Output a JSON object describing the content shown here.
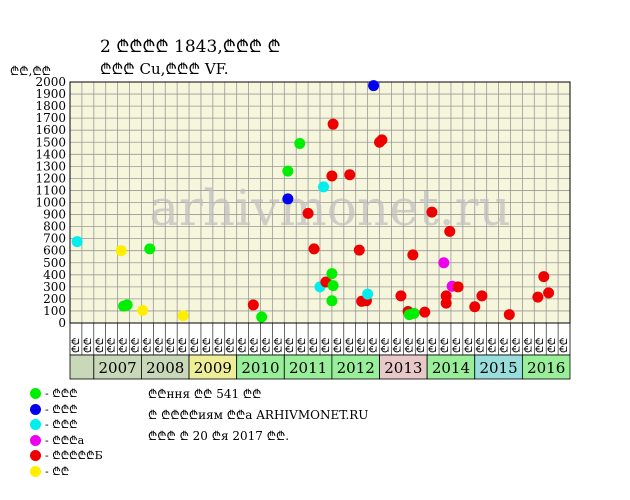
{
  "header": {
    "title": "2 ₾₾₾₾ 1843,₾₾₾ ₾",
    "subtitle": "₾₾₾ Cu,₾₾₾ VF."
  },
  "footer": {
    "line1": "₾₾ння ₾₾ 541 ₾₾",
    "line2": "₾ ₾₾₾₾иям ₾₾а ARHIVMONET.RU",
    "line3": "₾₾₾ ₾ 20 ₾я 2017 ₾₾."
  },
  "watermark": "arhivmonet.ru",
  "legend": [
    {
      "label": "- ₾₾₾",
      "color": "#00ee00"
    },
    {
      "label": "- ₾₾₾",
      "color": "#0000ee"
    },
    {
      "label": "- ₾₾₾",
      "color": "#00eeee"
    },
    {
      "label": "- ₾₾₾а",
      "color": "#ee00ee"
    },
    {
      "label": "- ₾₾₾₾₾Б",
      "color": "#ee0000"
    },
    {
      "label": "- ₾₾",
      "color": "#ffee00"
    }
  ],
  "chart_data": {
    "type": "scatter",
    "ylabel": "₾₾,₾₾",
    "ylim": [
      0,
      2000
    ],
    "yticks": [
      0,
      100,
      200,
      300,
      400,
      500,
      600,
      700,
      800,
      900,
      1000,
      1100,
      1200,
      1300,
      1400,
      1500,
      1600,
      1700,
      1800,
      1900,
      2000
    ],
    "grid": true,
    "quarter_labels": [
      "₾₾",
      "₾₾",
      "₾₾",
      "₾₾",
      "₾₾",
      "₾₾",
      "₾₾",
      "₾₾",
      "₾₾",
      "₾₾",
      "₾₾",
      "₾₾",
      "₾₾",
      "₾₾",
      "₾₾",
      "₾₾",
      "₾₾",
      "₾₾",
      "₾₾",
      "₾₾",
      "₾₾",
      "₾₾",
      "₾₾",
      "₾₾",
      "₾₾",
      "₾₾",
      "₾₾",
      "₾₾",
      "₾₾",
      "₾₾",
      "₾₾",
      "₾₾",
      "₾₾",
      "₾₾",
      "₾₾",
      "₾₾",
      "₾₾",
      "₾₾",
      "₾₾",
      "₾₾",
      "₾₾",
      "₾₾"
    ],
    "years": [
      {
        "label": "2007",
        "color": "#c8d8b8"
      },
      {
        "label": "2008",
        "color": "#c8d8b8"
      },
      {
        "label": "2009",
        "color": "#eeee99"
      },
      {
        "label": "2010",
        "color": "#99ee99"
      },
      {
        "label": "2011",
        "color": "#99ee99"
      },
      {
        "label": "2012",
        "color": "#99ee99"
      },
      {
        "label": "2013",
        "color": "#e8c8c8"
      },
      {
        "label": "2014",
        "color": "#99ee99"
      },
      {
        "label": "2015",
        "color": "#99dddd"
      },
      {
        "label": "2016",
        "color": "#99ee99"
      }
    ],
    "first_band_color": "#c8d8b8",
    "points": [
      {
        "x": 0.1,
        "y": 675,
        "grade": "cyan"
      },
      {
        "x": 3.8,
        "y": 600,
        "grade": "yellow"
      },
      {
        "x": 4.0,
        "y": 140,
        "grade": "green"
      },
      {
        "x": 4.3,
        "y": 150,
        "grade": "green"
      },
      {
        "x": 5.6,
        "y": 105,
        "grade": "yellow"
      },
      {
        "x": 6.2,
        "y": 615,
        "grade": "green"
      },
      {
        "x": 9.0,
        "y": 60,
        "grade": "yellow"
      },
      {
        "x": 14.9,
        "y": 150,
        "grade": "red"
      },
      {
        "x": 15.6,
        "y": 50,
        "grade": "green"
      },
      {
        "x": 17.8,
        "y": 1260,
        "grade": "green"
      },
      {
        "x": 17.8,
        "y": 1030,
        "grade": "blue"
      },
      {
        "x": 18.8,
        "y": 1490,
        "grade": "green"
      },
      {
        "x": 19.5,
        "y": 910,
        "grade": "red"
      },
      {
        "x": 20.0,
        "y": 615,
        "grade": "red"
      },
      {
        "x": 20.5,
        "y": 300,
        "grade": "cyan"
      },
      {
        "x": 20.8,
        "y": 1130,
        "grade": "cyan"
      },
      {
        "x": 21.0,
        "y": 340,
        "grade": "red"
      },
      {
        "x": 21.5,
        "y": 1220,
        "grade": "red"
      },
      {
        "x": 21.5,
        "y": 410,
        "grade": "green"
      },
      {
        "x": 21.6,
        "y": 310,
        "grade": "green"
      },
      {
        "x": 21.5,
        "y": 185,
        "grade": "green"
      },
      {
        "x": 21.6,
        "y": 1650,
        "grade": "red"
      },
      {
        "x": 23.0,
        "y": 1230,
        "grade": "red"
      },
      {
        "x": 23.8,
        "y": 605,
        "grade": "red"
      },
      {
        "x": 24.0,
        "y": 180,
        "grade": "red"
      },
      {
        "x": 24.4,
        "y": 185,
        "grade": "red"
      },
      {
        "x": 24.5,
        "y": 240,
        "grade": "cyan"
      },
      {
        "x": 25.0,
        "y": 1970,
        "grade": "blue"
      },
      {
        "x": 25.5,
        "y": 1500,
        "grade": "red"
      },
      {
        "x": 25.7,
        "y": 1520,
        "grade": "red"
      },
      {
        "x": 27.3,
        "y": 225,
        "grade": "red"
      },
      {
        "x": 27.9,
        "y": 95,
        "grade": "red"
      },
      {
        "x": 28.0,
        "y": 70,
        "grade": "green"
      },
      {
        "x": 28.4,
        "y": 80,
        "grade": "green"
      },
      {
        "x": 28.3,
        "y": 565,
        "grade": "red"
      },
      {
        "x": 29.3,
        "y": 90,
        "grade": "red"
      },
      {
        "x": 29.9,
        "y": 920,
        "grade": "red"
      },
      {
        "x": 30.9,
        "y": 500,
        "grade": "magenta"
      },
      {
        "x": 31.1,
        "y": 225,
        "grade": "red"
      },
      {
        "x": 31.1,
        "y": 165,
        "grade": "red"
      },
      {
        "x": 31.4,
        "y": 760,
        "grade": "red"
      },
      {
        "x": 31.6,
        "y": 305,
        "grade": "magenta"
      },
      {
        "x": 32.1,
        "y": 300,
        "grade": "red"
      },
      {
        "x": 33.5,
        "y": 135,
        "grade": "red"
      },
      {
        "x": 34.1,
        "y": 225,
        "grade": "red"
      },
      {
        "x": 36.4,
        "y": 70,
        "grade": "red"
      },
      {
        "x": 38.8,
        "y": 215,
        "grade": "red"
      },
      {
        "x": 39.3,
        "y": 385,
        "grade": "red"
      },
      {
        "x": 39.7,
        "y": 250,
        "grade": "red"
      }
    ]
  }
}
